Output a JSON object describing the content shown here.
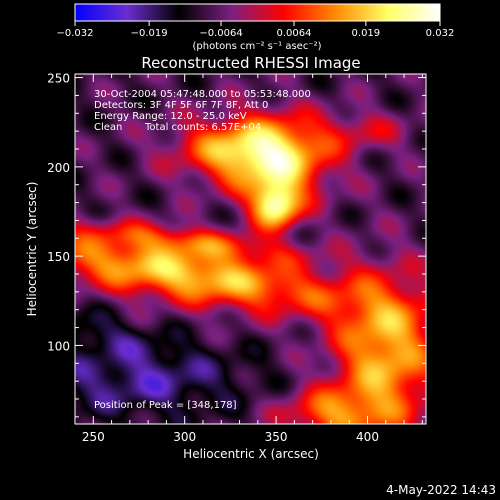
{
  "chart_data": {
    "type": "heatmap",
    "title": "Reconstructed RHESSI Image",
    "xlabel": "Heliocentric X (arcsec)",
    "ylabel": "Heliocentric Y (arcsec)",
    "xlim": [
      240,
      432
    ],
    "ylim": [
      56,
      252
    ],
    "x_ticks": [
      250,
      300,
      350,
      400
    ],
    "y_ticks": [
      100,
      150,
      200,
      250
    ],
    "colorbar": {
      "range": [
        -0.032,
        0.032
      ],
      "tick_values": [
        -0.032,
        -0.019,
        -0.0064,
        0.0064,
        0.019,
        0.032
      ],
      "tick_labels": [
        "−0.032",
        "−0.019",
        "−0.0064",
        "0.0064",
        "0.019",
        "0.032"
      ],
      "unit_label": "(photons cm⁻² s⁻¹ asec⁻²)",
      "colors": [
        "#0000ff",
        "#6b2dd0",
        "#000000",
        "#7a2080",
        "#ff0000",
        "#ff8c00",
        "#ffff66",
        "#ffffff"
      ]
    },
    "annotations": {
      "time_range": "30-Oct-2004 05:47:48.000 to 05:53:48.000",
      "detectors": "Detectors: 3F 4F 5F 6F 7F 8F, Att 0",
      "energy_range": "Energy Range: 12.0 - 25.0 keV",
      "algorithm": "Clean",
      "total_counts": "Total counts: 6.57E+04",
      "peak_position": "Position of Peak = [348,178]"
    },
    "sources": [
      {
        "x": 351,
        "y": 205,
        "sx": 20,
        "sy": 16,
        "value": 0.03
      },
      {
        "x": 350,
        "y": 178,
        "sx": 9,
        "sy": 9,
        "value": 0.032
      },
      {
        "x": 322,
        "y": 210,
        "sx": 22,
        "sy": 12,
        "value": 0.018
      },
      {
        "x": 300,
        "y": 140,
        "sx": 62,
        "sy": 11,
        "rot": -9,
        "value": 0.028
      },
      {
        "x": 305,
        "y": 158,
        "sx": 42,
        "sy": 6,
        "rot": -7,
        "value": 0.014
      },
      {
        "x": 410,
        "y": 95,
        "sx": 20,
        "sy": 30,
        "value": 0.026
      },
      {
        "x": 380,
        "y": 62,
        "sx": 20,
        "sy": 10,
        "value": 0.018
      },
      {
        "x": 398,
        "y": 220,
        "sx": 18,
        "sy": 8,
        "value": 0.009
      },
      {
        "x": 250,
        "y": 108,
        "sx": 30,
        "sy": 8,
        "rot": -15,
        "value": -0.007
      },
      {
        "x": 275,
        "y": 80,
        "sx": 40,
        "sy": 14,
        "value": -0.012
      }
    ]
  },
  "footer": {
    "date_stamp": "4-May-2022 14:43"
  }
}
